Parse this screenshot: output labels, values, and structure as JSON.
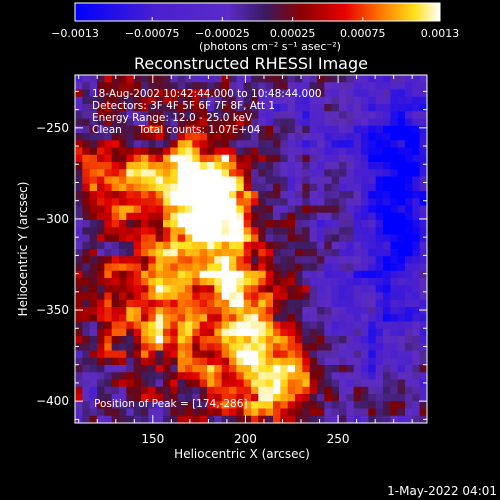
{
  "chart_data": {
    "type": "heatmap",
    "title": "Reconstructed RHESSI Image",
    "xlabel": "Heliocentric X (arcsec)",
    "ylabel": "Heliocentric Y (arcsec)",
    "xlim": [
      108,
      298
    ],
    "ylim": [
      -412,
      -221
    ],
    "x_ticks": [
      150,
      200,
      250
    ],
    "x_tick_labels": [
      "150",
      "200",
      "250"
    ],
    "y_ticks": [
      -250,
      -300,
      -350,
      -400
    ],
    "y_tick_labels": [
      "−250",
      "−300",
      "−350",
      "−400"
    ],
    "colorbar": {
      "range": [
        -0.0013,
        0.0013
      ],
      "tick_values": [
        -0.0013,
        -0.00075,
        -0.00025,
        0.00025,
        0.00075,
        0.0013
      ],
      "tick_labels": [
        "−0.0013",
        "−0.00075",
        "−0.00025",
        "0.00025",
        "0.00075",
        "0.0013"
      ],
      "units_label": "(photons cm⁻² s⁻¹ asec⁻²)"
    },
    "annotations": [
      "18-Aug-2002 10:42:44.000 to 10:48:44.000",
      "Detectors: 3F 4F 5F 6F 7F 8F, Att 1",
      "Energy Range: 12.0 - 25.0 keV",
      "Clean     Total counts: 1.07E+04"
    ],
    "peak_text": "Position of Peak = [174,-286]",
    "peak": {
      "x": 174,
      "y": -286
    },
    "colors": {
      "negative": [
        "#0000ff",
        "#5a2bc8",
        "#3a1a60"
      ],
      "positive": [
        "#3a1a60",
        "#7a0000",
        "#e80000",
        "#ff7a00",
        "#ffe01a",
        "#ffffff"
      ]
    }
  },
  "footer_timestamp": "1-May-2022 04:01"
}
